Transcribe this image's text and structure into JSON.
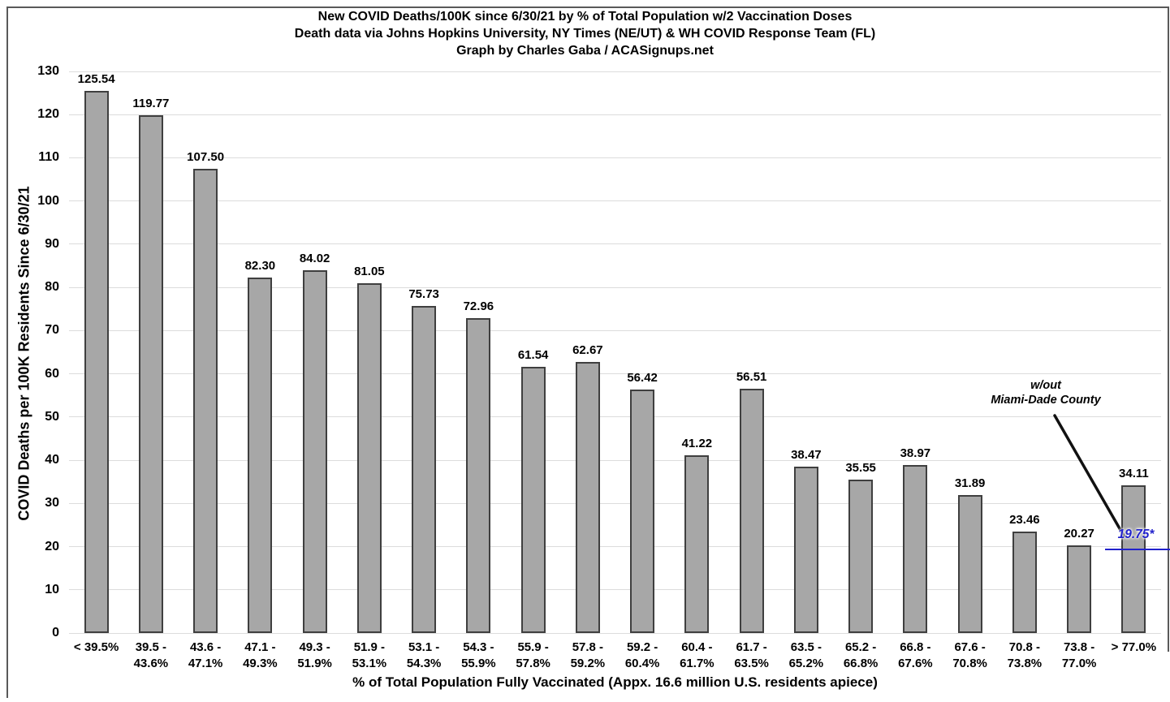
{
  "chart_data": {
    "type": "bar",
    "title_lines": [
      "New COVID Deaths/100K since 6/30/21 by % of Total Population w/2 Vaccination Doses",
      "Death data via Johns Hopkins University, NY Times (NE/UT) & WH COVID Response Team (FL)",
      "Graph by Charles Gaba / ACASignups.net"
    ],
    "ylabel": "COVID Deaths per 100K Residents Since 6/30/21",
    "xlabel": "% of Total Population Fully Vaccinated (Appx. 16.6 million U.S. residents apiece)",
    "ylim": [
      0,
      130
    ],
    "y_ticks": [
      0,
      10,
      20,
      30,
      40,
      50,
      60,
      70,
      80,
      90,
      100,
      110,
      120,
      130
    ],
    "grid": true,
    "legend": "none",
    "categories": [
      "< 39.5%",
      "39.5 -\n43.6%",
      "43.6 -\n47.1%",
      "47.1 -\n49.3%",
      "49.3 -\n51.9%",
      "51.9 -\n53.1%",
      "53.1 -\n54.3%",
      "54.3 -\n55.9%",
      "55.9 -\n57.8%",
      "57.8 -\n59.2%",
      "59.2 -\n60.4%",
      "60.4 -\n61.7%",
      "61.7 -\n63.5%",
      "63.5 -\n65.2%",
      "65.2 -\n66.8%",
      "66.8 -\n67.6%",
      "67.6 -\n70.8%",
      "70.8 -\n73.8%",
      "73.8 -\n77.0%",
      "> 77.0%"
    ],
    "values": [
      125.54,
      119.77,
      107.5,
      82.3,
      84.02,
      81.05,
      75.73,
      72.96,
      61.54,
      62.67,
      56.42,
      41.22,
      56.51,
      38.47,
      35.55,
      38.97,
      31.89,
      23.46,
      20.27,
      34.11
    ],
    "annotation": {
      "text": "w/out\nMiami-Dade County",
      "value_label": "19.75*",
      "value": 19.75,
      "applies_to_category": "> 77.0%",
      "color": "#2222CC"
    },
    "colors": {
      "bar_fill": "#A7A7A7",
      "bar_border": "#3F3F3F",
      "gridline": "#DCDCDC",
      "text": "#000000",
      "pointer_line": "#111111"
    }
  }
}
